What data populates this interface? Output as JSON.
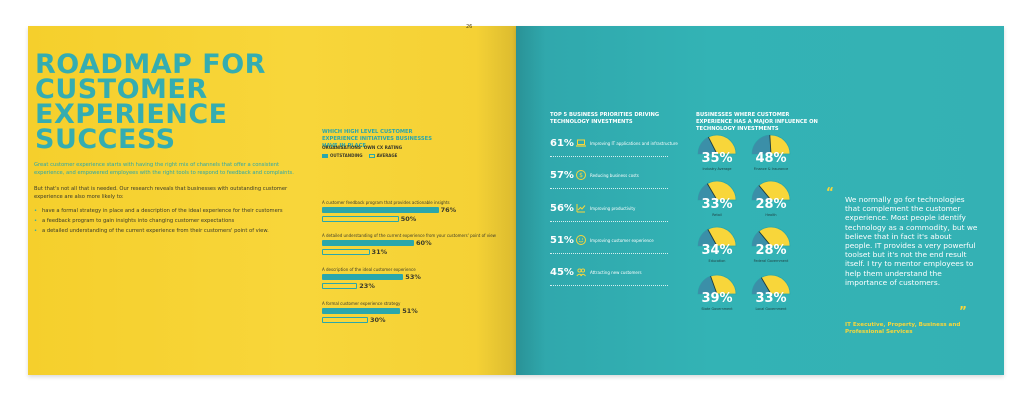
{
  "left": {
    "page_number": "26",
    "title": [
      "ROADMAP FOR",
      "CUSTOMER",
      "EXPERIENCE",
      "SUCCESS"
    ],
    "intro": "Great customer experience starts with having the right mix of channels that offer a consistent experience, and empowered employees with the right tools to respond to feedback and complaints.",
    "body": "But that's not all that is needed. Our research reveals that businesses with outstanding customer experience are also more likely to:",
    "bullets": [
      "have a formal strategy in place and a description of the ideal experience for their customers",
      "a feedback program to gain insights into changing customer expectations",
      "a detailed understanding of the current experience from their customers' point of view."
    ],
    "chart": {
      "title": "WHICH HIGH LEVEL CUSTOMER EXPERIENCE INITIATIVES BUSINESSES HAVE IN PLACE",
      "rating_label": "ORGANISATIONS' OWN CX RATING",
      "legend": {
        "outstanding": "OUTSTANDING",
        "average": "AVERAGE"
      }
    }
  },
  "chart_data": {
    "type": "bar",
    "orientation": "horizontal",
    "categories": [
      "A customer feedback program that provides actionable insights",
      "A detailed understanding of the current experience from your customers' point of view",
      "A description of the ideal customer experience",
      "A formal customer experience strategy"
    ],
    "series": [
      {
        "name": "OUTSTANDING",
        "values": [
          76,
          60,
          53,
          51
        ],
        "labels": [
          "76%",
          "60%",
          "53%",
          "51%"
        ],
        "color": "#2aa7ab"
      },
      {
        "name": "AVERAGE",
        "values": [
          50,
          31,
          23,
          30
        ],
        "labels": [
          "50%",
          "31%",
          "23%",
          "30%"
        ],
        "color": "#f8d63a"
      }
    ],
    "xlim": [
      0,
      100
    ]
  },
  "right": {
    "priorities_title": "TOP 5 BUSINESS PRIORITIES DRIVING TECHNOLOGY INVESTMENTS",
    "priorities": [
      {
        "pct": "61%",
        "label": "Improving IT applications and infrastructure",
        "icon": "laptop-icon"
      },
      {
        "pct": "57%",
        "label": "Reducing business costs",
        "icon": "money-icon"
      },
      {
        "pct": "56%",
        "label": "Improving productivity",
        "icon": "chart-icon"
      },
      {
        "pct": "51%",
        "label": "Improving customer experience",
        "icon": "smiley-icon"
      },
      {
        "pct": "45%",
        "label": "Attracting new customers",
        "icon": "people-icon"
      }
    ],
    "gauges_title": "BUSINESSES WHERE CUSTOMER EXPERIENCE HAS A MAJOR INFLUENCE ON TECHNOLOGY INVESTMENTS",
    "gauges": [
      {
        "pct": "35%",
        "value": 35,
        "label": "Industry Average"
      },
      {
        "pct": "48%",
        "value": 48,
        "label": "Finance & Insurance"
      },
      {
        "pct": "33%",
        "value": 33,
        "label": "Retail"
      },
      {
        "pct": "28%",
        "value": 28,
        "label": "Health"
      },
      {
        "pct": "34%",
        "value": 34,
        "label": "Education"
      },
      {
        "pct": "28%",
        "value": 28,
        "label": "Federal Government"
      },
      {
        "pct": "39%",
        "value": 39,
        "label": "State Government"
      },
      {
        "pct": "33%",
        "value": 33,
        "label": "Local Government"
      }
    ],
    "quote": "We normally go for technologies that complement the customer experience. Most people identify technology as a commodity, but we believe that in fact it's about people. IT provides a very powerful toolset but it's not the end result itself. I try to mentor employees to help them understand the importance of customers.",
    "attribution": "IT Executive, Property, Business and Professional Services",
    "quote_open": "“",
    "quote_close": "”"
  },
  "colors": {
    "yellow": "#f8d63a",
    "teal": "#2aa7ab",
    "dark": "#3a3a2a"
  }
}
